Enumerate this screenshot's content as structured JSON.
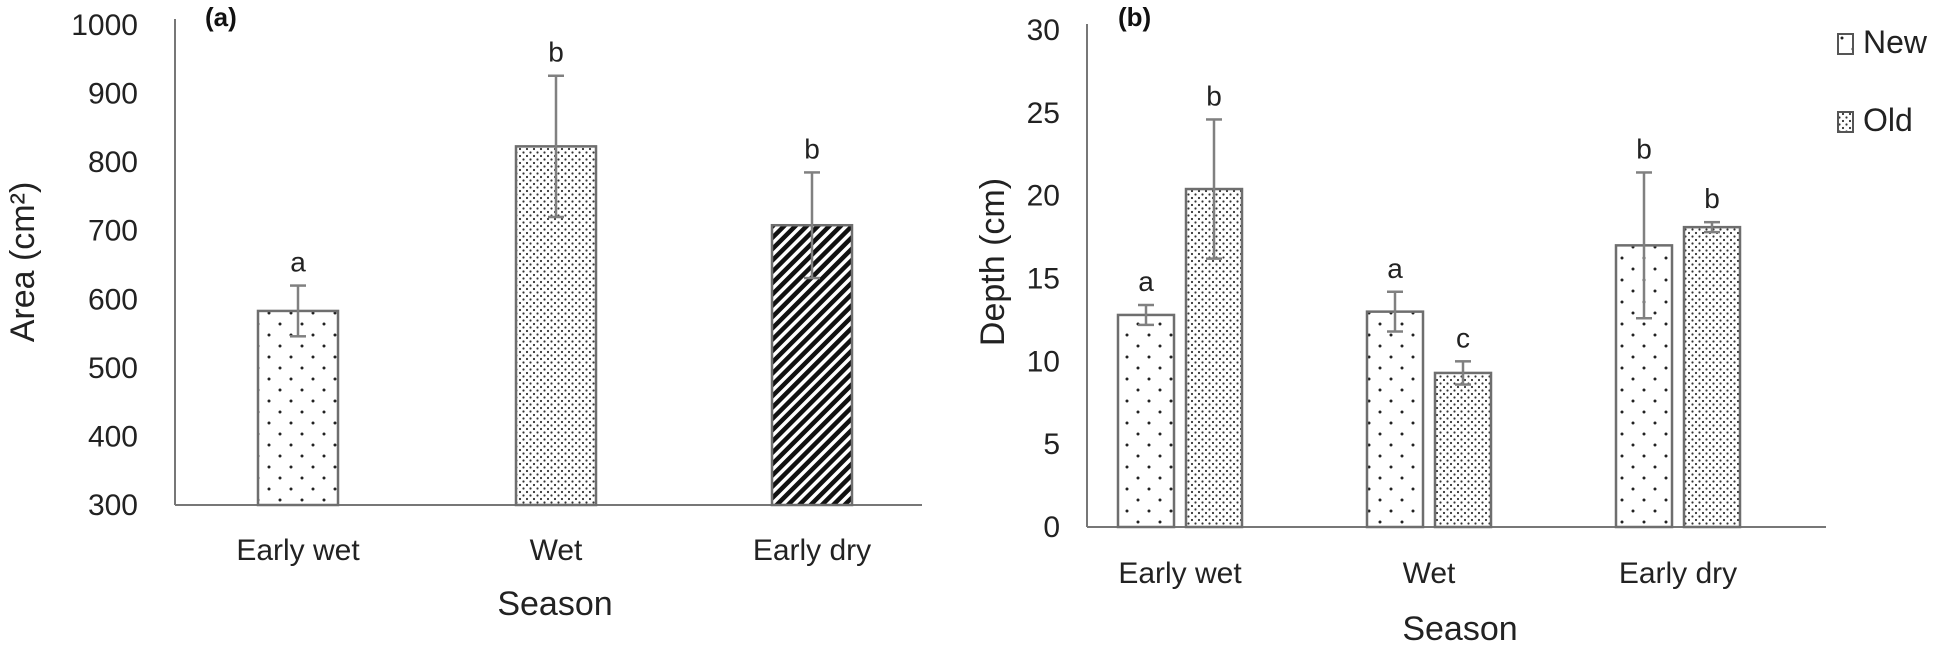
{
  "chart_data": [
    {
      "panel": "(a)",
      "type": "bar",
      "xlabel": "Season",
      "ylabel": "Area (cm²)",
      "ylim": [
        300,
        1000
      ],
      "yticks": [
        "1000",
        "900",
        "800",
        "700",
        "600",
        "500",
        "400",
        "300"
      ],
      "categories": [
        "Early wet",
        "Wet",
        "Early dry"
      ],
      "values": [
        583,
        823,
        708
      ],
      "errors": [
        37,
        103,
        77
      ],
      "letters": [
        "a",
        "b",
        "b"
      ],
      "patterns": [
        "sparse-dots",
        "dense-dots",
        "diagonal-stripes"
      ],
      "grid": false
    },
    {
      "panel": "(b)",
      "type": "bar",
      "xlabel": "Season",
      "ylabel": "Depth (cm)",
      "ylim": [
        0,
        30
      ],
      "yticks": [
        "30",
        "25",
        "20",
        "15",
        "10",
        "5",
        "0"
      ],
      "categories": [
        "Early wet",
        "Wet",
        "Early dry"
      ],
      "series": [
        {
          "name": "New",
          "values": [
            12.8,
            13.0,
            17.0
          ],
          "errors": [
            0.6,
            1.2,
            4.4
          ],
          "letters": [
            "a",
            "a",
            "b"
          ],
          "pattern": "sparse-dots"
        },
        {
          "name": "Old",
          "values": [
            20.4,
            9.3,
            18.1
          ],
          "errors": [
            4.2,
            0.7,
            0.3
          ],
          "letters": [
            "b",
            "c",
            "b"
          ],
          "pattern": "dense-dots"
        }
      ],
      "legend_position": "top-right",
      "grid": false
    }
  ],
  "colors": {
    "axis": "#777777",
    "bar_outline": "#6e6e6e",
    "error_bar": "#808080",
    "dot": "#222222"
  }
}
